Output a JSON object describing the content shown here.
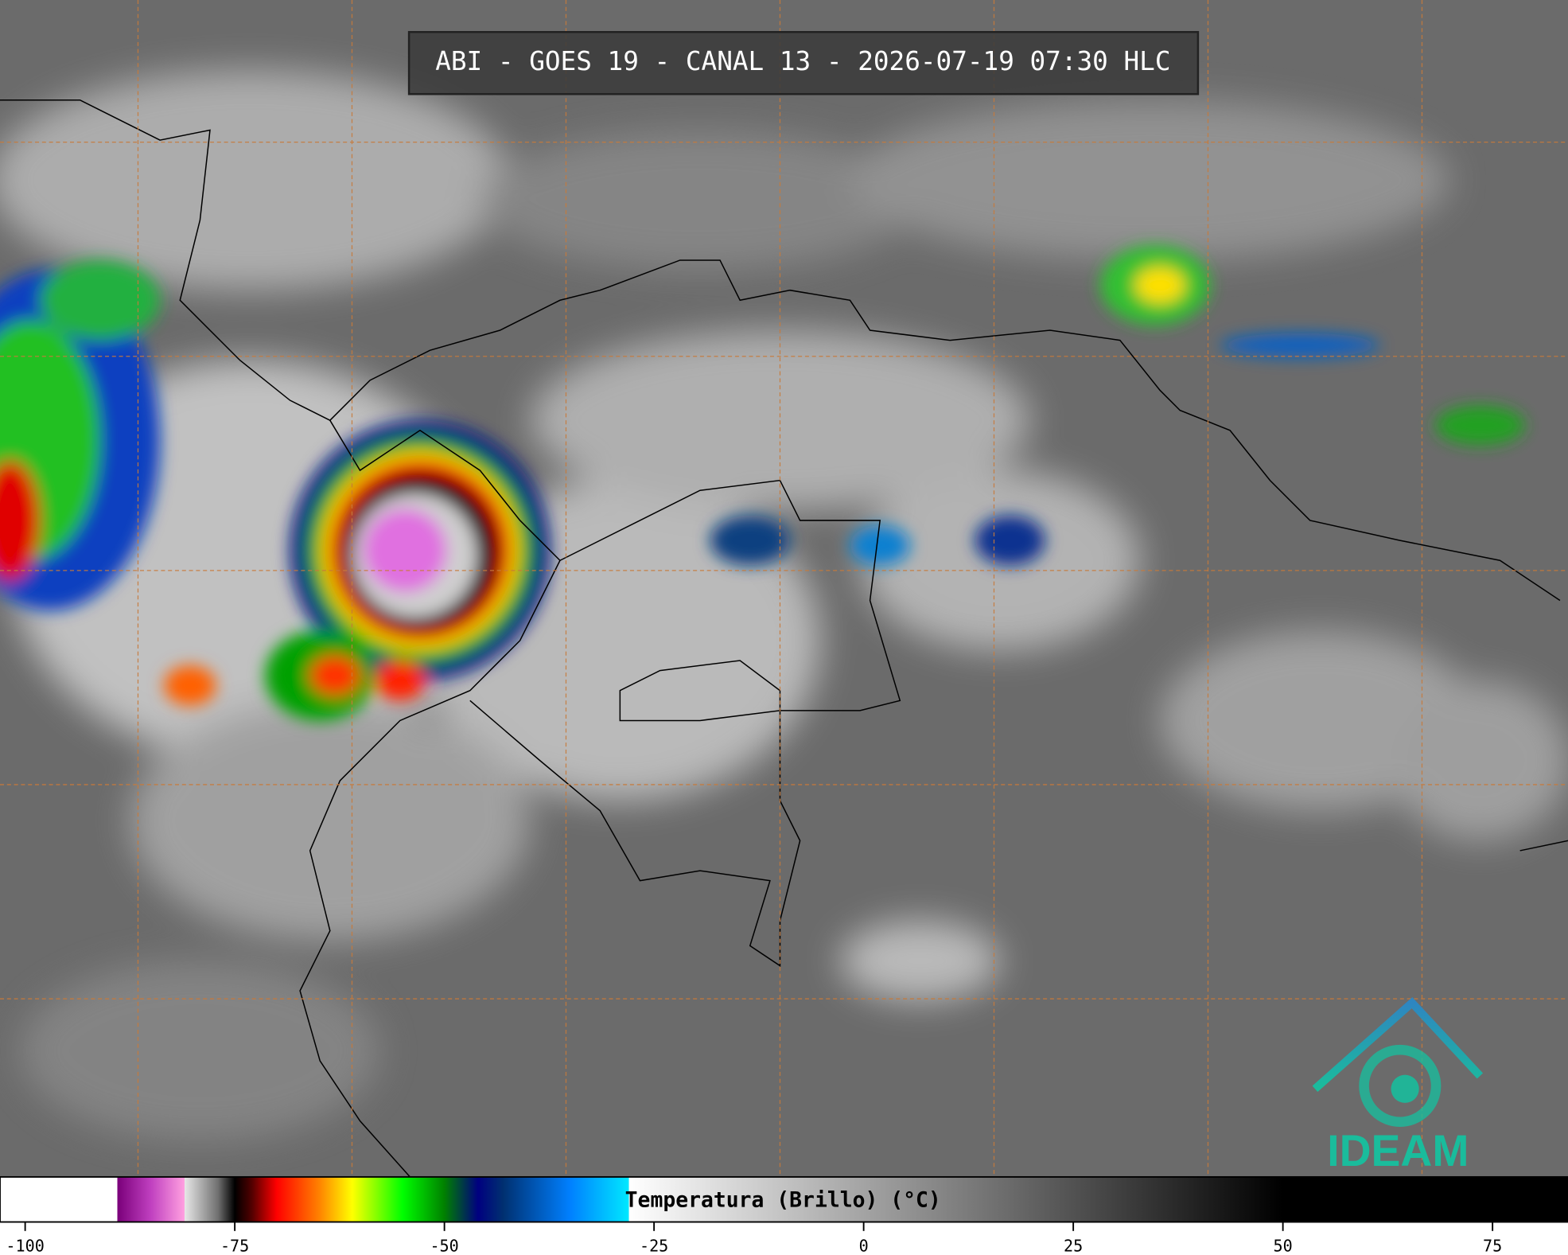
{
  "header": {
    "title": "ABI - GOES 19 - CANAL 13 - 2026-07-19 07:30 HLC"
  },
  "colorbar": {
    "label": "Temperatura (Brillo) (°C)",
    "xlim": [
      -103,
      84
    ],
    "ticks": [
      -100,
      -75,
      -50,
      -25,
      0,
      25,
      50,
      75
    ],
    "colormap": [
      {
        "value": -103,
        "color": "#ffffff"
      },
      {
        "value": -89,
        "color": "#ffffff"
      },
      {
        "value": -89,
        "color": "#7a007a"
      },
      {
        "value": -85,
        "color": "#c040c0"
      },
      {
        "value": -81,
        "color": "#ffa0e0"
      },
      {
        "value": -81,
        "color": "#e8e8e8"
      },
      {
        "value": -77,
        "color": "#707070"
      },
      {
        "value": -75,
        "color": "#000000"
      },
      {
        "value": -73,
        "color": "#500000"
      },
      {
        "value": -70,
        "color": "#ff0000"
      },
      {
        "value": -65,
        "color": "#ff8000"
      },
      {
        "value": -61,
        "color": "#ffff00"
      },
      {
        "value": -55,
        "color": "#00ff00"
      },
      {
        "value": -50,
        "color": "#008000"
      },
      {
        "value": -46,
        "color": "#000080"
      },
      {
        "value": -43,
        "color": "#003070"
      },
      {
        "value": -35,
        "color": "#0080ff"
      },
      {
        "value": -28,
        "color": "#00e8ff"
      },
      {
        "value": -28,
        "color": "#ffffff"
      },
      {
        "value": 50,
        "color": "#000000"
      },
      {
        "value": 84,
        "color": "#000000"
      }
    ]
  },
  "logo": {
    "text": "IDEAM"
  }
}
